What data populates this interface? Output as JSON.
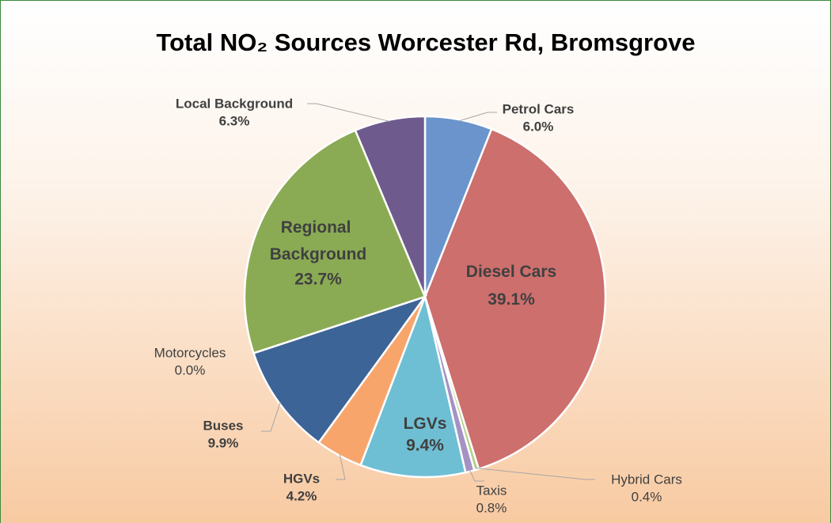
{
  "chart_data": {
    "type": "pie",
    "title": "Total NO₂ Sources Worcester Rd, Bromsgrove",
    "categories": [
      "Petrol Cars",
      "Diesel Cars",
      "Hybrid Cars",
      "Taxis",
      "LGVs",
      "HGVs",
      "Buses",
      "Motorcycles",
      "Regional Background",
      "Local Background"
    ],
    "values": [
      6.0,
      39.1,
      0.4,
      0.8,
      9.4,
      4.2,
      9.9,
      0.0,
      23.7,
      6.3
    ],
    "value_labels": [
      "6.0%",
      "39.1%",
      "0.4%",
      "0.8%",
      "9.4%",
      "4.2%",
      "9.9%",
      "0.0%",
      "23.7%",
      "6.3%"
    ],
    "colors": [
      "#6a94cb",
      "#cd6f6d",
      "#b5cf8a",
      "#a592c4",
      "#6fbfd4",
      "#f8a56c",
      "#3d6496",
      "#c5d9ee",
      "#8aab54",
      "#6e5a8c"
    ]
  }
}
